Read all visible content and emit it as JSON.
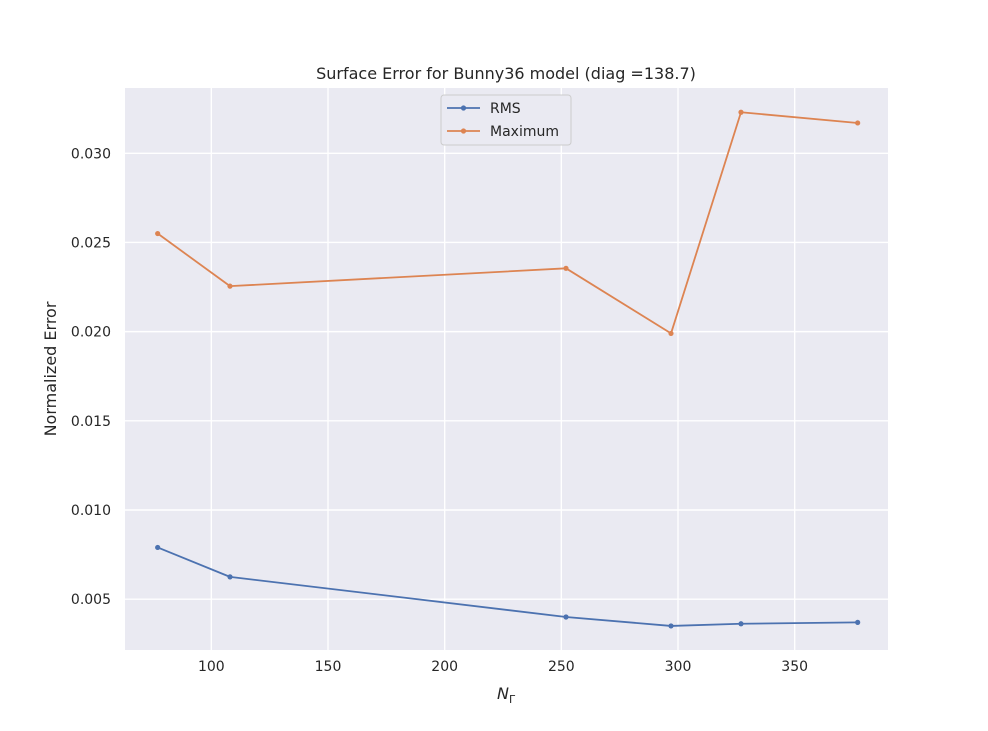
{
  "chart_data": {
    "type": "line",
    "title": "Surface Error for Bunny36 model (diag =138.7)",
    "xlabel_main": "N",
    "xlabel_sub": "Γ",
    "ylabel": "Normalized Error",
    "xlim": [
      63,
      390
    ],
    "ylim": [
      0.00215,
      0.03366
    ],
    "x_ticks": [
      100,
      150,
      200,
      250,
      300,
      350
    ],
    "x_tick_labels": [
      "100",
      "150",
      "200",
      "250",
      "300",
      "350"
    ],
    "y_ticks": [
      0.005,
      0.01,
      0.015,
      0.02,
      0.025,
      0.03
    ],
    "y_tick_labels": [
      "0.005",
      "0.010",
      "0.015",
      "0.020",
      "0.025",
      "0.030"
    ],
    "grid": true,
    "legend_position": "top-center",
    "series": [
      {
        "name": "RMS",
        "color": "#4c72b0",
        "x": [
          77,
          108,
          252,
          297,
          327,
          377
        ],
        "values": [
          0.0079,
          0.00625,
          0.004,
          0.0035,
          0.00362,
          0.0037
        ]
      },
      {
        "name": "Maximum",
        "color": "#dd8452",
        "x": [
          77,
          108,
          252,
          297,
          327,
          377
        ],
        "values": [
          0.0255,
          0.02255,
          0.02355,
          0.0199,
          0.0323,
          0.0317
        ]
      }
    ]
  }
}
